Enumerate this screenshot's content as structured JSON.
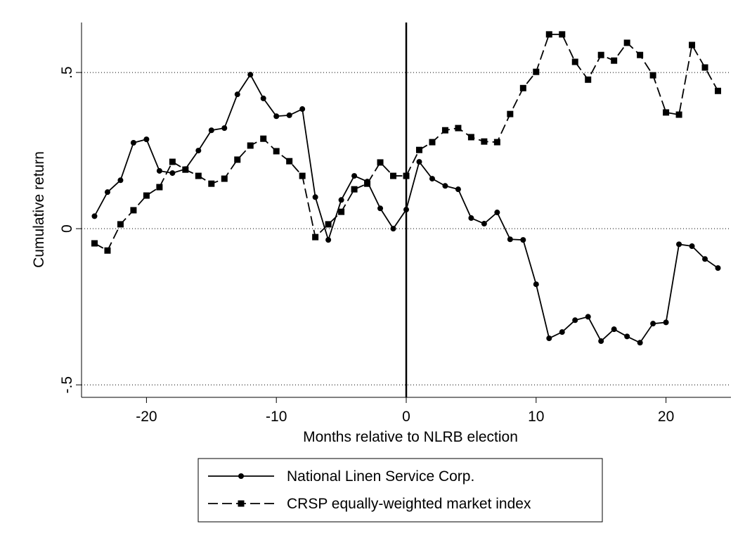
{
  "chart_data": {
    "type": "line",
    "xlabel": "Months relative to NLRB election",
    "ylabel": "Cumulative return",
    "x": [
      -24,
      -23,
      -22,
      -21,
      -20,
      -19,
      -18,
      -17,
      -16,
      -15,
      -14,
      -13,
      -12,
      -11,
      -10,
      -9,
      -8,
      -7,
      -6,
      -5,
      -4,
      -3,
      -2,
      -1,
      0,
      1,
      2,
      3,
      4,
      5,
      6,
      7,
      8,
      9,
      10,
      11,
      12,
      13,
      14,
      15,
      16,
      17,
      18,
      19,
      20,
      21,
      22,
      23,
      24
    ],
    "series": [
      {
        "name": "National Linen Service Corp.",
        "color": "#000000",
        "dash": "solid",
        "marker": "circle",
        "values": [
          0.04,
          0.117,
          0.155,
          0.275,
          0.286,
          0.185,
          0.178,
          0.191,
          0.25,
          0.315,
          0.322,
          0.43,
          0.493,
          0.417,
          0.36,
          0.363,
          0.383,
          0.101,
          -0.036,
          0.092,
          0.169,
          0.151,
          0.065,
          0.0,
          0.061,
          0.214,
          0.16,
          0.137,
          0.126,
          0.034,
          0.016,
          0.052,
          -0.034,
          -0.036,
          -0.178,
          -0.351,
          -0.331,
          -0.293,
          -0.282,
          -0.36,
          -0.322,
          -0.345,
          -0.365,
          -0.304,
          -0.3,
          -0.05,
          -0.056,
          -0.097,
          -0.126
        ]
      },
      {
        "name": "CRSP equally-weighted market index",
        "color": "#000000",
        "dash": "dashed",
        "marker": "square",
        "values": [
          -0.047,
          -0.07,
          0.014,
          0.059,
          0.106,
          0.133,
          0.214,
          0.189,
          0.169,
          0.144,
          0.16,
          0.221,
          0.266,
          0.288,
          0.248,
          0.216,
          0.169,
          -0.027,
          0.014,
          0.054,
          0.126,
          0.144,
          0.212,
          0.169,
          0.169,
          0.252,
          0.277,
          0.315,
          0.322,
          0.293,
          0.279,
          0.277,
          0.367,
          0.45,
          0.502,
          0.622,
          0.622,
          0.534,
          0.477,
          0.556,
          0.538,
          0.595,
          0.556,
          0.491,
          0.372,
          0.365,
          0.588,
          0.516,
          0.441
        ]
      }
    ],
    "xlim": [
      -25,
      25
    ],
    "xticks": [
      -20,
      -10,
      0,
      10,
      20
    ],
    "ylim": [
      -0.54,
      0.66
    ],
    "yticks": [
      {
        "value": -0.5,
        "label": "-.5"
      },
      0,
      {
        "value": 0.5,
        "label": ".5"
      }
    ],
    "grid": true,
    "xline": 0,
    "legend": "bottom"
  }
}
